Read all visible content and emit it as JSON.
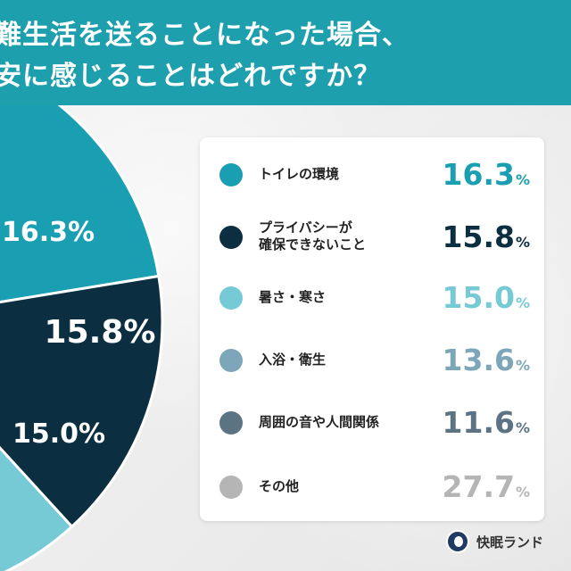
{
  "header": {
    "title_line1": "難生活を送ることになった場合、",
    "title_line2": "安に感じることはどれですか？"
  },
  "chart_data": {
    "type": "pie",
    "title": "",
    "slices": [
      {
        "label": "トイレの環境",
        "value": 16.3,
        "display": "16.3",
        "color": "#1a9fb2"
      },
      {
        "label": "プライバシーが確保できないこと",
        "value": 15.8,
        "display": "15.8",
        "color": "#0b2f40"
      },
      {
        "label": "暑さ・寒さ",
        "value": 15.0,
        "display": "15.0",
        "color": "#76cad6"
      },
      {
        "label": "入浴・衛生",
        "value": 13.6,
        "display": "13.6",
        "color": "#7da7b9"
      },
      {
        "label": "周囲の音や人間関係",
        "value": 11.6,
        "display": "11.6",
        "color": "#5c7384"
      },
      {
        "label": "その他",
        "value": 27.7,
        "display": "27.7",
        "color": "#b5b5b5"
      }
    ],
    "unit": "%"
  },
  "legend": {
    "items": [
      {
        "line1": "トイレの環境",
        "line2": "",
        "value": "16.3",
        "unit": "%",
        "color": "#1a9fb2"
      },
      {
        "line1": "プライバシーが",
        "line2": "確保できないこと",
        "value": "15.8",
        "unit": "%",
        "color": "#0b2f40"
      },
      {
        "line1": "暑さ・寒さ",
        "line2": "",
        "value": "15.0",
        "unit": "%",
        "color": "#76cad6"
      },
      {
        "line1": "入浴・衛生",
        "line2": "",
        "value": "13.6",
        "unit": "%",
        "color": "#7da7b9"
      },
      {
        "line1": "周囲の音や人間関係",
        "line2": "",
        "value": "11.6",
        "unit": "%",
        "color": "#5c7384"
      },
      {
        "line1": "その他",
        "line2": "",
        "value": "27.7",
        "unit": "%",
        "color": "#b5b5b5"
      }
    ]
  },
  "brand": {
    "name": "快眠ランド",
    "icon": "moon-logo-icon"
  }
}
